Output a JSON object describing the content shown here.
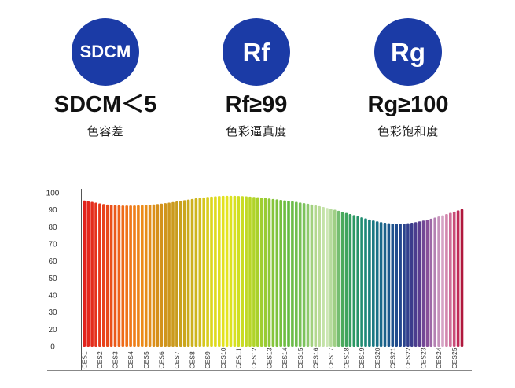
{
  "metrics": [
    {
      "badge": "SDCM",
      "value": "SDCM＜5",
      "label": "色容差"
    },
    {
      "badge": "Rf",
      "value": "Rf≥99",
      "label": "色彩逼真度"
    },
    {
      "badge": "Rg",
      "value": "Rg≥100",
      "label": "色彩饱和度"
    }
  ],
  "colors": {
    "badge_background": "#1b3ba6",
    "badge_text": "#ffffff",
    "value_text": "#111111",
    "label_text": "#222222",
    "axis": "#555555"
  },
  "chart_data": {
    "type": "bar",
    "ylim": [
      0,
      100
    ],
    "yticks": [
      100,
      90,
      80,
      70,
      60,
      50,
      40,
      30,
      20,
      0
    ],
    "xticks": [
      {
        "bar": 1,
        "label": "CES1"
      },
      {
        "bar": 5,
        "label": "CES2"
      },
      {
        "bar": 9,
        "label": "CES3"
      },
      {
        "bar": 13,
        "label": "CES4"
      },
      {
        "bar": 17,
        "label": "CES5"
      },
      {
        "bar": 21,
        "label": "CES6"
      },
      {
        "bar": 25,
        "label": "CES7"
      },
      {
        "bar": 29,
        "label": "CES8"
      },
      {
        "bar": 33,
        "label": "CES9"
      },
      {
        "bar": 37,
        "label": "CES10"
      },
      {
        "bar": 41,
        "label": "CES11"
      },
      {
        "bar": 45,
        "label": "CES12"
      },
      {
        "bar": 49,
        "label": "CES13"
      },
      {
        "bar": 53,
        "label": "CES14"
      },
      {
        "bar": 57,
        "label": "CES15"
      },
      {
        "bar": 61,
        "label": "CES16"
      },
      {
        "bar": 65,
        "label": "CES17"
      },
      {
        "bar": 69,
        "label": "CES18"
      },
      {
        "bar": 73,
        "label": "CES19"
      },
      {
        "bar": 77,
        "label": "CES20"
      },
      {
        "bar": 81,
        "label": "CES21"
      },
      {
        "bar": 85,
        "label": "CES22"
      },
      {
        "bar": 89,
        "label": "CES23"
      },
      {
        "bar": 93,
        "label": "CES24"
      },
      {
        "bar": 97,
        "label": "CES25"
      }
    ],
    "values": [
      95.0,
      94.6,
      94.1,
      93.6,
      93.1,
      92.7,
      92.4,
      92.2,
      92.0,
      91.9,
      91.8,
      91.8,
      91.8,
      91.8,
      91.9,
      92.0,
      92.1,
      92.3,
      92.5,
      92.7,
      93.0,
      93.3,
      93.6,
      94.0,
      94.4,
      94.8,
      95.2,
      95.6,
      96.0,
      96.4,
      96.7,
      97.0,
      97.3,
      97.5,
      97.7,
      97.9,
      98.0,
      98.0,
      98.0,
      98.0,
      97.9,
      97.8,
      97.7,
      97.5,
      97.3,
      97.1,
      96.9,
      96.6,
      96.3,
      96.0,
      95.7,
      95.4,
      95.1,
      94.8,
      94.5,
      94.1,
      93.7,
      93.3,
      92.9,
      92.4,
      91.9,
      91.4,
      90.8,
      90.2,
      89.6,
      89.0,
      88.3,
      87.6,
      86.9,
      86.2,
      85.5,
      84.8,
      84.1,
      83.4,
      82.7,
      82.1,
      81.5,
      81.0,
      80.6,
      80.3,
      80.1,
      80.0,
      80.0,
      80.1,
      80.3,
      80.6,
      81.0,
      81.5,
      82.0,
      82.6,
      83.2,
      83.9,
      84.6,
      85.4,
      86.2,
      87.0,
      87.8,
      88.6,
      89.4
    ],
    "bar_colors": [
      {
        "bar": 1,
        "color": "#e2211c"
      },
      {
        "bar": 4,
        "color": "#e5321c"
      },
      {
        "bar": 8,
        "color": "#ea5019"
      },
      {
        "bar": 12,
        "color": "#ef7219"
      },
      {
        "bar": 16,
        "color": "#ec8a18"
      },
      {
        "bar": 20,
        "color": "#d6901b"
      },
      {
        "bar": 25,
        "color": "#c89c1d"
      },
      {
        "bar": 30,
        "color": "#cdb51d"
      },
      {
        "bar": 34,
        "color": "#dcd61e"
      },
      {
        "bar": 38,
        "color": "#e4e41e"
      },
      {
        "bar": 42,
        "color": "#c9dc24"
      },
      {
        "bar": 46,
        "color": "#a9d12c"
      },
      {
        "bar": 50,
        "color": "#86c53a"
      },
      {
        "bar": 54,
        "color": "#66ba42"
      },
      {
        "bar": 58,
        "color": "#7cc25c"
      },
      {
        "bar": 61,
        "color": "#b3d88f"
      },
      {
        "bar": 64,
        "color": "#cde7b4"
      },
      {
        "bar": 66,
        "color": "#9fcf85"
      },
      {
        "bar": 68,
        "color": "#4aaa5c"
      },
      {
        "bar": 71,
        "color": "#2a9862"
      },
      {
        "bar": 74,
        "color": "#1d8978"
      },
      {
        "bar": 77,
        "color": "#1a7187"
      },
      {
        "bar": 80,
        "color": "#1b578c"
      },
      {
        "bar": 83,
        "color": "#22468e"
      },
      {
        "bar": 86,
        "color": "#3b3c8c"
      },
      {
        "bar": 88,
        "color": "#5b3d8f"
      },
      {
        "bar": 90,
        "color": "#87509a"
      },
      {
        "bar": 92,
        "color": "#b480b2"
      },
      {
        "bar": 94,
        "color": "#d6a3c4"
      },
      {
        "bar": 96,
        "color": "#cf6d98"
      },
      {
        "bar": 98,
        "color": "#c02a58"
      },
      {
        "bar": 99,
        "color": "#b0183d"
      }
    ],
    "grid": false,
    "legend": "none"
  }
}
